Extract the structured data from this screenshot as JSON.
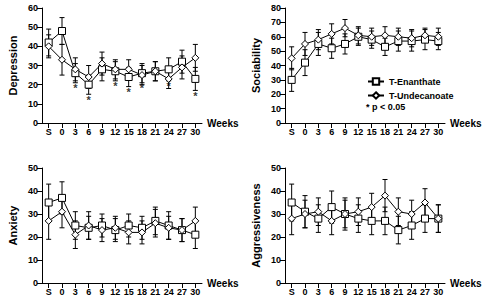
{
  "chart_data": [
    {
      "type": "line",
      "y_label": "Depression",
      "x_label": "Weeks",
      "categories": [
        "S",
        "0",
        "3",
        "6",
        "9",
        "12",
        "15",
        "18",
        "21",
        "24",
        "27",
        "30"
      ],
      "ylim": [
        0,
        60
      ],
      "yticks": [
        0,
        10,
        20,
        30,
        40,
        50,
        60
      ],
      "grid": false,
      "series": [
        {
          "name": "T-Enanthate",
          "color": "#000000",
          "marker": "square",
          "line_style": "solid",
          "values": [
            42,
            48,
            26,
            20,
            28,
            27,
            24,
            26,
            27,
            28,
            32,
            23
          ],
          "errors": [
            7,
            7,
            5,
            5,
            6,
            5,
            5,
            5,
            5,
            6,
            6,
            6
          ]
        },
        {
          "name": "T-Undecanoate",
          "color": "#000000",
          "marker": "diamond",
          "line_style": "solid",
          "values": [
            40,
            33,
            28,
            24,
            31,
            28,
            28,
            25,
            27,
            23,
            29,
            34
          ],
          "errors": [
            6,
            8,
            6,
            6,
            6,
            5,
            5,
            5,
            5,
            5,
            6,
            7
          ]
        }
      ],
      "annotations": [
        {
          "text": "*",
          "series": "T-Enanthate",
          "category": "3"
        },
        {
          "text": "*",
          "series": "T-Enanthate",
          "category": "6"
        },
        {
          "text": "*",
          "series": "T-Enanthate",
          "category": "12"
        },
        {
          "text": "*",
          "series": "T-Enanthate",
          "category": "15"
        },
        {
          "text": "*",
          "series": "T-Enanthate",
          "category": "18"
        },
        {
          "text": "*",
          "series": "T-Enanthate",
          "category": "24"
        },
        {
          "text": "*",
          "series": "T-Enanthate",
          "category": "30"
        }
      ]
    },
    {
      "type": "line",
      "y_label": "Sociability",
      "x_label": "Weeks",
      "categories": [
        "S",
        "0",
        "3",
        "6",
        "9",
        "12",
        "15",
        "18",
        "21",
        "24",
        "27",
        "30"
      ],
      "ylim": [
        0,
        80
      ],
      "yticks": [
        0,
        10,
        20,
        30,
        40,
        50,
        60,
        70,
        80
      ],
      "grid": false,
      "legend": "lower right",
      "note": "* p < 0.05",
      "series": [
        {
          "name": "T-Enanthate",
          "color": "#000000",
          "marker": "square",
          "line_style": "solid",
          "values": [
            30,
            42,
            55,
            52,
            55,
            60,
            58,
            53,
            57,
            57,
            58,
            57
          ],
          "errors": [
            8,
            9,
            8,
            7,
            7,
            6,
            6,
            6,
            7,
            7,
            7,
            6
          ]
        },
        {
          "name": "T-Undecanoate",
          "color": "#000000",
          "marker": "diamond",
          "line_style": "solid",
          "values": [
            45,
            55,
            58,
            62,
            66,
            61,
            60,
            61,
            60,
            59,
            61,
            60
          ],
          "errors": [
            8,
            8,
            7,
            7,
            6,
            6,
            6,
            6,
            6,
            6,
            5,
            6
          ]
        }
      ]
    },
    {
      "type": "line",
      "y_label": "Anxiety",
      "x_label": "Weeks",
      "categories": [
        "S",
        "0",
        "3",
        "6",
        "9",
        "12",
        "15",
        "18",
        "21",
        "24",
        "27",
        "30"
      ],
      "ylim": [
        0,
        50
      ],
      "yticks": [
        0,
        10,
        20,
        30,
        40,
        50
      ],
      "grid": false,
      "series": [
        {
          "name": "T-Enanthate",
          "color": "#000000",
          "marker": "square",
          "line_style": "solid",
          "values": [
            35,
            37,
            25,
            24,
            25,
            23,
            25,
            24,
            27,
            25,
            23,
            21
          ],
          "errors": [
            8,
            7,
            6,
            5,
            5,
            5,
            5,
            5,
            6,
            6,
            5,
            6
          ]
        },
        {
          "name": "T-Undecanoate",
          "color": "#000000",
          "marker": "diamond",
          "line_style": "solid",
          "values": [
            27,
            31,
            21,
            25,
            23,
            24,
            22,
            22,
            26,
            24,
            23,
            27
          ],
          "errors": [
            8,
            7,
            6,
            6,
            5,
            5,
            5,
            5,
            6,
            5,
            5,
            6
          ]
        }
      ]
    },
    {
      "type": "line",
      "y_label": "Aggressiveness",
      "x_label": "Weeks",
      "categories": [
        "S",
        "0",
        "3",
        "6",
        "9",
        "12",
        "15",
        "18",
        "21",
        "24",
        "27",
        "30"
      ],
      "ylim": [
        0,
        50
      ],
      "yticks": [
        0,
        10,
        20,
        30,
        40,
        50
      ],
      "grid": false,
      "series": [
        {
          "name": "T-Enanthate",
          "color": "#000000",
          "marker": "square",
          "line_style": "solid",
          "values": [
            35,
            31,
            28,
            33,
            30,
            28,
            27,
            27,
            23,
            25,
            28,
            28
          ],
          "errors": [
            8,
            7,
            6,
            7,
            7,
            6,
            6,
            6,
            6,
            6,
            6,
            6
          ]
        },
        {
          "name": "T-Undecanoate",
          "color": "#000000",
          "marker": "diamond",
          "line_style": "solid",
          "values": [
            28,
            30,
            31,
            27,
            30,
            31,
            33,
            38,
            31,
            30,
            35,
            28
          ],
          "errors": [
            7,
            6,
            6,
            6,
            6,
            6,
            6,
            7,
            6,
            6,
            6,
            6
          ]
        }
      ]
    }
  ]
}
